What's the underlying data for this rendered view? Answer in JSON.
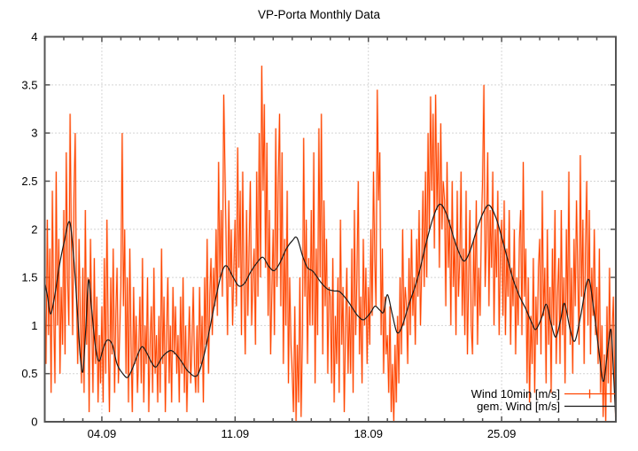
{
  "title": "VP-Porta Monthly Data",
  "colors": {
    "wind10min": "#ff4500",
    "wind10min_halo": "#ff9a6e",
    "gem_wind": "#1a1a1a",
    "grid": "#aaaaaa",
    "border": "#545454",
    "background": "#ffffff",
    "text": "#000000"
  },
  "axes": {
    "y": {
      "min": 0,
      "max": 4,
      "tick_step": 0.5,
      "tick_labels": [
        "0",
        "0.5",
        "1",
        "1.5",
        "2",
        "2.5",
        "3",
        "3.5",
        "4"
      ]
    },
    "x": {
      "min_day": 1,
      "max_day": 31,
      "minor_tick_every_days": 1,
      "major_tick_days": [
        4,
        11,
        18,
        25
      ],
      "major_tick_labels": [
        "04.09",
        "11.09",
        "18.09",
        "25.09"
      ]
    }
  },
  "legend": {
    "entries": [
      {
        "label": "Wind 10min [m/s]",
        "color": "#ff4500",
        "marker": "plus"
      },
      {
        "label": "gem. Wind [m/s]",
        "color": "#1a1a1a",
        "marker": "none"
      }
    ]
  },
  "chart_data": {
    "type": "line",
    "title": "VP-Porta Monthly Data",
    "xlabel": "",
    "ylabel": "",
    "ylim": [
      0,
      4
    ],
    "xlim_days_september": [
      1,
      31
    ],
    "grid": true,
    "legend_position": "bottom-right-inside",
    "x_ticks": {
      "days": [
        4,
        11,
        18,
        25
      ],
      "labels": [
        "04.09",
        "11.09",
        "18.09",
        "25.09"
      ]
    },
    "series": [
      {
        "name": "Wind 10min [m/s]",
        "color": "#ff4500",
        "x_start_day": 1.0,
        "x_step_days": 0.06667,
        "values": [
          1.5,
          0.6,
          2.1,
          0.9,
          1.8,
          0.3,
          2.4,
          1.2,
          0.4,
          2.6,
          1.0,
          1.9,
          0.5,
          1.4,
          0.8,
          2.2,
          0.7,
          2.8,
          1.5,
          1.0,
          3.2,
          1.8,
          0.9,
          2.3,
          3.0,
          1.3,
          0.6,
          1.9,
          1.1,
          0.4,
          1.6,
          0.3,
          2.2,
          0.8,
          1.5,
          0.1,
          1.9,
          1.1,
          0.3,
          1.7,
          0.6,
          1.3,
          0.2,
          0.9,
          0.4,
          1.2,
          0.2,
          1.7,
          0.5,
          2.1,
          0.9,
          0.1,
          1.5,
          0.7,
          1.8,
          0.3,
          1.1,
          1.6,
          0.4,
          0.9,
          1.4,
          3.0,
          1.2,
          2.0,
          0.5,
          1.5,
          0.2,
          1.8,
          0.8,
          0.1,
          1.4,
          0.6,
          1.1,
          0.3,
          0.7,
          1.3,
          0.4,
          1.7,
          0.2,
          1.0,
          0.6,
          1.5,
          0.1,
          0.8,
          1.2,
          0.3,
          1.6,
          0.5,
          0.9,
          0.2,
          1.1,
          0.3,
          1.8,
          0.6,
          1.3,
          0.1,
          0.9,
          1.5,
          0.4,
          1.0,
          0.2,
          1.4,
          0.7,
          1.2,
          0.5,
          0.9,
          0.2,
          1.3,
          0.5,
          1.5,
          0.3,
          1.0,
          0.1,
          0.7,
          1.2,
          0.4,
          0.8,
          1.4,
          0.6,
          0.3,
          1.0,
          0.3,
          1.4,
          0.6,
          1.1,
          0.2,
          1.5,
          0.8,
          1.9,
          0.5,
          1.3,
          1.7,
          0.9,
          1.6,
          1.2,
          2.0,
          1.1,
          2.7,
          1.5,
          2.2,
          1.3,
          3.4,
          2.6,
          1.8,
          0.9,
          2.3,
          1.4,
          2.0,
          1.0,
          1.6,
          2.1,
          1.2,
          2.85,
          1.6,
          2.4,
          0.9,
          2.6,
          1.4,
          0.7,
          2.2,
          1.1,
          1.8,
          2.5,
          1.0,
          1.5,
          1.8,
          0.8,
          2.6,
          1.3,
          3.0,
          1.5,
          3.7,
          2.4,
          3.3,
          1.6,
          2.9,
          1.1,
          2.2,
          0.7,
          1.4,
          2.0,
          0.9,
          3.05,
          1.4,
          2.5,
          3.2,
          1.2,
          2.8,
          0.6,
          1.9,
          1.0,
          2.4,
          0.4,
          1.5,
          0.8,
          0.5,
          0.1,
          1.2,
          0.0,
          0.8,
          0.2,
          1.5,
          0.05,
          0.9,
          2.95,
          1.3,
          2.1,
          0.6,
          1.7,
          1.0,
          2.2,
          1.0,
          2.8,
          0.4,
          1.8,
          0.9,
          3.05,
          1.5,
          3.2,
          0.7,
          2.3,
          1.2,
          1.9,
          0.5,
          1.4,
          1.3,
          0.4,
          1.7,
          0.2,
          1.1,
          0.6,
          1.5,
          0.3,
          2.1,
          0.8,
          1.4,
          0.1,
          1.0,
          1.6,
          0.5,
          1.2,
          0.5,
          1.8,
          0.3,
          2.2,
          0.9,
          1.5,
          2.5,
          0.7,
          1.3,
          0.4,
          1.9,
          1.0,
          1.6,
          0.6,
          1.4,
          0.8,
          2.0,
          1.1,
          2.6,
          1.7,
          1.2,
          3.45,
          2.3,
          2.8,
          0.9,
          1.8,
          0.5,
          1.3,
          0.7,
          0.9,
          0.3,
          1.2,
          0.1,
          0.6,
          0.0,
          0.8,
          0.2,
          1.1,
          0.4,
          1.5,
          0.7,
          2.0,
          1.0,
          1.4,
          1.2,
          0.6,
          1.7,
          0.9,
          2.0,
          1.1,
          1.5,
          0.8,
          1.9,
          1.3,
          2.2,
          1.0,
          1.6,
          2.4,
          1.4,
          2.6,
          1.5,
          3.0,
          2.0,
          3.38,
          2.4,
          3.2,
          1.8,
          3.4,
          2.2,
          2.9,
          1.6,
          3.1,
          2.0,
          2.5,
          2.3,
          1.2,
          2.7,
          1.6,
          2.1,
          1.0,
          2.5,
          1.4,
          1.9,
          0.9,
          2.4,
          1.3,
          1.7,
          2.6,
          1.1,
          1.8,
          0.9,
          2.4,
          0.7,
          1.5,
          2.2,
          1.0,
          0.7,
          1.9,
          1.2,
          2.3,
          0.8,
          1.6,
          1.1,
          2.0,
          2.5,
          3.5,
          1.4,
          1.9,
          2.8,
          1.2,
          2.2,
          1.6,
          2.6,
          1.0,
          2.0,
          1.5,
          2.4,
          0.9,
          1.8,
          2.1,
          1.1,
          2.3,
          0.9,
          1.8,
          1.3,
          2.2,
          0.8,
          1.6,
          1.2,
          2.0,
          0.7,
          1.5,
          1.0,
          1.9,
          2.2,
          0.9,
          2.7,
          1.3,
          1.8,
          0.4,
          1.5,
          0.2,
          1.1,
          0.6,
          1.7,
          0.3,
          1.3,
          0.8,
          1.6,
          1.9,
          0.7,
          2.4,
          1.1,
          1.6,
          0.4,
          2.0,
          0.8,
          1.4,
          0.3,
          1.8,
          1.0,
          2.2,
          0.6,
          1.3,
          1.7,
          0.6,
          2.2,
          0.9,
          1.5,
          0.4,
          2.0,
          1.1,
          2.6,
          0.8,
          1.6,
          0.5,
          1.9,
          1.2,
          2.3,
          1.5,
          0.8,
          2.77,
          1.3,
          2.1,
          0.6,
          1.8,
          2.5,
          1.0,
          2.2,
          0.7,
          1.6,
          1.1,
          2.0,
          0.9,
          1.4,
          0.6,
          1.8,
          0.3,
          1.0,
          0.05,
          0.7,
          0.0,
          1.2,
          0.4,
          1.6,
          0.2,
          0.9,
          1.3,
          0.5,
          0.05
        ]
      },
      {
        "name": "gem. Wind [m/s]",
        "color": "#1a1a1a",
        "points": [
          [
            1.0,
            1.45
          ],
          [
            1.15,
            1.3
          ],
          [
            1.3,
            1.12
          ],
          [
            1.5,
            1.28
          ],
          [
            1.75,
            1.6
          ],
          [
            2.0,
            1.85
          ],
          [
            2.3,
            2.08
          ],
          [
            2.5,
            1.75
          ],
          [
            2.7,
            1.2
          ],
          [
            2.85,
            0.72
          ],
          [
            3.0,
            0.52
          ],
          [
            3.15,
            0.95
          ],
          [
            3.3,
            1.47
          ],
          [
            3.45,
            1.2
          ],
          [
            3.65,
            0.8
          ],
          [
            3.85,
            0.63
          ],
          [
            4.1,
            0.78
          ],
          [
            4.3,
            0.85
          ],
          [
            4.55,
            0.8
          ],
          [
            4.8,
            0.6
          ],
          [
            5.1,
            0.5
          ],
          [
            5.35,
            0.46
          ],
          [
            5.6,
            0.55
          ],
          [
            5.85,
            0.68
          ],
          [
            6.1,
            0.78
          ],
          [
            6.35,
            0.72
          ],
          [
            6.6,
            0.62
          ],
          [
            6.85,
            0.57
          ],
          [
            7.2,
            0.68
          ],
          [
            7.6,
            0.74
          ],
          [
            7.9,
            0.7
          ],
          [
            8.2,
            0.62
          ],
          [
            8.55,
            0.52
          ],
          [
            9.0,
            0.48
          ],
          [
            9.35,
            0.68
          ],
          [
            9.7,
            1.0
          ],
          [
            10.0,
            1.3
          ],
          [
            10.3,
            1.55
          ],
          [
            10.55,
            1.62
          ],
          [
            10.9,
            1.5
          ],
          [
            11.2,
            1.41
          ],
          [
            11.5,
            1.44
          ],
          [
            11.8,
            1.55
          ],
          [
            12.1,
            1.64
          ],
          [
            12.45,
            1.71
          ],
          [
            12.75,
            1.62
          ],
          [
            13.05,
            1.57
          ],
          [
            13.35,
            1.65
          ],
          [
            13.7,
            1.8
          ],
          [
            14.0,
            1.88
          ],
          [
            14.25,
            1.91
          ],
          [
            14.55,
            1.72
          ],
          [
            14.8,
            1.6
          ],
          [
            15.1,
            1.56
          ],
          [
            15.5,
            1.45
          ],
          [
            15.85,
            1.38
          ],
          [
            16.2,
            1.36
          ],
          [
            16.5,
            1.35
          ],
          [
            16.9,
            1.26
          ],
          [
            17.2,
            1.17
          ],
          [
            17.45,
            1.1
          ],
          [
            17.75,
            1.06
          ],
          [
            18.1,
            1.13
          ],
          [
            18.35,
            1.2
          ],
          [
            18.6,
            1.16
          ],
          [
            18.8,
            1.14
          ],
          [
            19.0,
            1.32
          ],
          [
            19.25,
            1.12
          ],
          [
            19.5,
            0.93
          ],
          [
            19.75,
            0.98
          ],
          [
            20.1,
            1.2
          ],
          [
            20.6,
            1.5
          ],
          [
            21.0,
            1.83
          ],
          [
            21.4,
            2.12
          ],
          [
            21.75,
            2.26
          ],
          [
            22.1,
            2.16
          ],
          [
            22.5,
            1.9
          ],
          [
            22.8,
            1.74
          ],
          [
            23.05,
            1.67
          ],
          [
            23.35,
            1.78
          ],
          [
            23.7,
            2.0
          ],
          [
            24.05,
            2.18
          ],
          [
            24.35,
            2.25
          ],
          [
            24.7,
            2.12
          ],
          [
            25.0,
            1.92
          ],
          [
            25.3,
            1.7
          ],
          [
            25.6,
            1.48
          ],
          [
            25.95,
            1.3
          ],
          [
            26.25,
            1.18
          ],
          [
            26.6,
            1.02
          ],
          [
            26.8,
            0.96
          ],
          [
            27.1,
            1.08
          ],
          [
            27.35,
            1.22
          ],
          [
            27.6,
            1.02
          ],
          [
            27.85,
            0.88
          ],
          [
            28.1,
            1.06
          ],
          [
            28.3,
            1.23
          ],
          [
            28.6,
            0.96
          ],
          [
            28.85,
            0.84
          ],
          [
            29.15,
            1.1
          ],
          [
            29.55,
            1.48
          ],
          [
            29.85,
            1.15
          ],
          [
            30.1,
            0.75
          ],
          [
            30.35,
            0.42
          ],
          [
            30.6,
            0.8
          ],
          [
            30.75,
            0.95
          ],
          [
            30.88,
            0.5
          ],
          [
            30.98,
            0.08
          ]
        ]
      }
    ]
  }
}
